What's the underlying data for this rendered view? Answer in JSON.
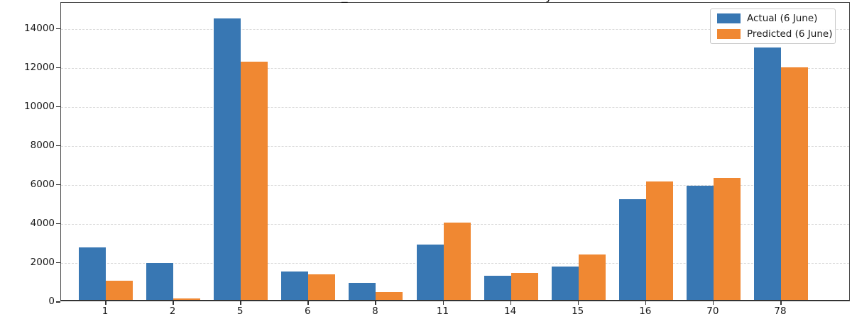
{
  "title_fragments": {
    "left": "_",
    "right": "y"
  },
  "legend": {
    "position": "top-right",
    "items": [
      {
        "label": "Actual (6 June)",
        "color": "#3877B3"
      },
      {
        "label": "Predicted (6 June)",
        "color": "#F08832"
      }
    ]
  },
  "chart_data": {
    "type": "bar",
    "categories": [
      "1",
      "2",
      "5",
      "6",
      "8",
      "11",
      "14",
      "15",
      "16",
      "70",
      "78"
    ],
    "series": [
      {
        "name": "Actual (6 June)",
        "color": "#3877B3",
        "values": [
          2700,
          1900,
          14450,
          1460,
          860,
          2850,
          1240,
          1720,
          5180,
          5840,
          12950
        ]
      },
      {
        "name": "Predicted (6 June)",
        "color": "#F08832",
        "values": [
          1000,
          90,
          12230,
          1310,
          390,
          3960,
          1390,
          2340,
          6080,
          6240,
          11930
        ]
      }
    ],
    "xlabel": "",
    "ylabel": "",
    "ylim": [
      0,
      15345
    ],
    "yticks": [
      0,
      2000,
      4000,
      6000,
      8000,
      10000,
      12000,
      14000
    ],
    "grid": "horizontal-dashed",
    "legend_position": "top-right"
  }
}
